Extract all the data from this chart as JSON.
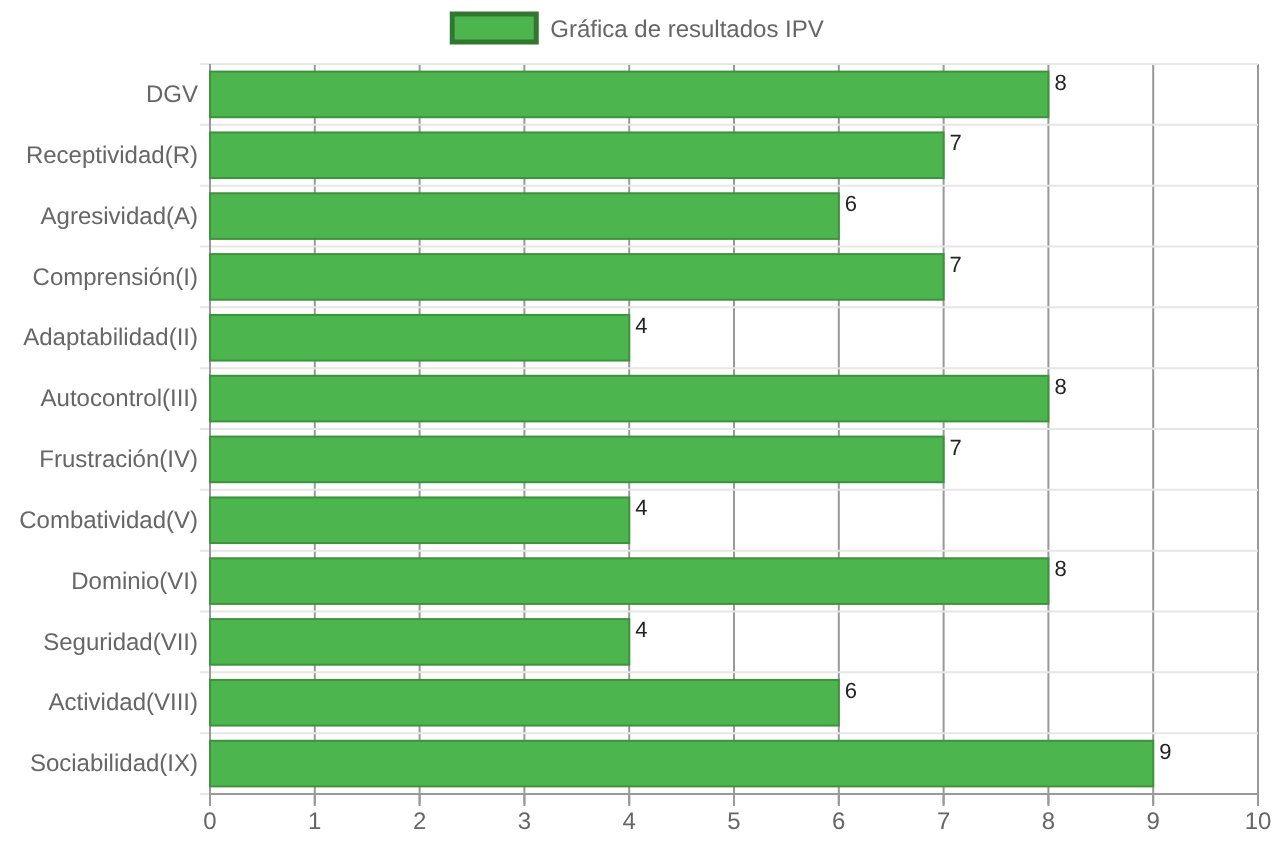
{
  "chart_data": {
    "type": "bar",
    "orientation": "horizontal",
    "categories": [
      "DGV",
      "Receptividad(R)",
      "Agresividad(A)",
      "Comprensión(I)",
      "Adaptabilidad(II)",
      "Autocontrol(III)",
      "Frustración(IV)",
      "Combatividad(V)",
      "Dominio(VI)",
      "Seguridad(VII)",
      "Actividad(VIII)",
      "Sociabilidad(IX)"
    ],
    "series": [
      {
        "name": "Gráfica de resultados IPV",
        "color": "#4db54d",
        "values": [
          8,
          7,
          6,
          7,
          4,
          8,
          7,
          4,
          8,
          4,
          6,
          9
        ]
      }
    ],
    "xlim": [
      0,
      10
    ],
    "xticks": [
      0,
      1,
      2,
      3,
      4,
      5,
      6,
      7,
      8,
      9,
      10
    ],
    "grid": true,
    "legend": "top",
    "data_labels": true
  }
}
